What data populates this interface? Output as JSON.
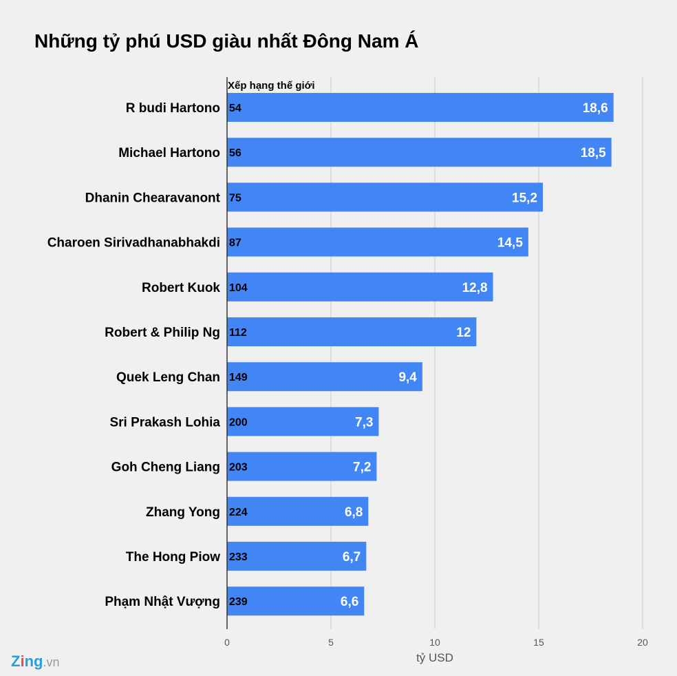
{
  "chart_data": {
    "type": "bar",
    "orientation": "horizontal",
    "title": "Những tỷ phú USD giàu nhất Đông Nam Á",
    "xlabel": "tỷ USD",
    "ylabel": "",
    "rank_header": "Xếp hạng thế giới",
    "xlim": [
      0,
      20
    ],
    "x_ticks": [
      "0",
      "5",
      "10",
      "15",
      "20"
    ],
    "grid": true,
    "categories": [
      "R budi Hartono",
      "Michael Hartono",
      "Dhanin Chearavanont",
      "Charoen Sirivadhanabhakdi",
      "Robert Kuok",
      "Robert & Philip Ng",
      "Quek Leng Chan",
      "Sri Prakash Lohia",
      "Goh Cheng Liang",
      "Zhang Yong",
      "The Hong Piow",
      "Phạm Nhật Vượng"
    ],
    "values": [
      18.6,
      18.5,
      15.2,
      14.5,
      12.8,
      12,
      9.4,
      7.3,
      7.2,
      6.8,
      6.7,
      6.6
    ],
    "value_labels": [
      "18,6",
      "18,5",
      "15,2",
      "14,5",
      "12,8",
      "12",
      "9,4",
      "7,3",
      "7,2",
      "6,8",
      "6,7",
      "6,6"
    ],
    "ranks": [
      "54",
      "56",
      "75",
      "87",
      "104",
      "112",
      "149",
      "200",
      "203",
      "224",
      "233",
      "239"
    ],
    "bar_color": "#4285f4"
  },
  "branding": {
    "logo_z": "Z",
    "logo_i": "i",
    "logo_ng": "ng",
    "logo_vn": ".vn"
  }
}
